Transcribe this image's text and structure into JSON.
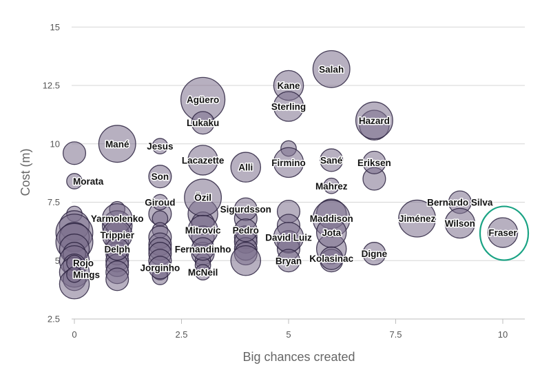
{
  "colors": {
    "bubble_fill": "#7b6f8d",
    "bubble_stroke": "#2c2240",
    "highlight": "#1aa384",
    "grid": "#d6d6d6"
  },
  "chart_data": {
    "type": "scatter",
    "xlabel": "Big chances created",
    "ylabel": "Cost (m)",
    "xlim": [
      0,
      10.5
    ],
    "ylim": [
      2.5,
      15.5
    ],
    "x_ticks": [
      0,
      2.5,
      5,
      7.5,
      10
    ],
    "x_tick_labels": [
      "0",
      "2.5",
      "5",
      "7.5",
      "10"
    ],
    "y_ticks": [
      2.5,
      5,
      7.5,
      10,
      12.5,
      15
    ],
    "y_tick_labels": [
      "2.5",
      "5",
      "7.5",
      "10",
      "12.5",
      "15"
    ],
    "grid": "horizontal",
    "highlighted": "Fraser",
    "labeled_points": [
      {
        "name": "Salah",
        "x": 6,
        "y": 13.2,
        "size": 4
      },
      {
        "name": "Kane",
        "x": 5,
        "y": 12.5,
        "size": 3
      },
      {
        "name": "Sterling",
        "x": 5,
        "y": 11.6,
        "size": 3
      },
      {
        "name": "Agüero",
        "x": 3,
        "y": 11.9,
        "size": 5
      },
      {
        "name": "Lukaku",
        "x": 3,
        "y": 10.9,
        "size": 2
      },
      {
        "name": "Hazard",
        "x": 7,
        "y": 11.0,
        "size": 4
      },
      {
        "name": "Mané",
        "x": 1,
        "y": 10.0,
        "size": 4
      },
      {
        "name": "Jesus",
        "x": 2,
        "y": 9.9,
        "size": 1
      },
      {
        "name": "Lacazette",
        "x": 3,
        "y": 9.3,
        "size": 3
      },
      {
        "name": "Alli",
        "x": 4,
        "y": 9.0,
        "size": 3
      },
      {
        "name": "Firmino",
        "x": 5,
        "y": 9.2,
        "size": 3
      },
      {
        "name": "Sané",
        "x": 6,
        "y": 9.3,
        "size": 2
      },
      {
        "name": "Eriksen",
        "x": 7,
        "y": 9.2,
        "size": 2
      },
      {
        "name": "Morata",
        "x": 0,
        "y": 8.4,
        "size": 1
      },
      {
        "name": "Son",
        "x": 2,
        "y": 8.6,
        "size": 2
      },
      {
        "name": "Mahrez",
        "x": 6,
        "y": 8.2,
        "size": 1
      },
      {
        "name": "Özil",
        "x": 3,
        "y": 7.7,
        "size": 4
      },
      {
        "name": "Giroud",
        "x": 2,
        "y": 7.5,
        "size": 1
      },
      {
        "name": "Sigurdsson",
        "x": 4,
        "y": 7.2,
        "size": 2
      },
      {
        "name": "Bernardo Silva",
        "x": 9,
        "y": 7.5,
        "size": 2
      },
      {
        "name": "Maddison",
        "x": 6,
        "y": 6.8,
        "size": 4
      },
      {
        "name": "Jiménez",
        "x": 8,
        "y": 6.8,
        "size": 4
      },
      {
        "name": "Wilson",
        "x": 9,
        "y": 6.6,
        "size": 3
      },
      {
        "name": "Fraser",
        "x": 10,
        "y": 6.2,
        "size": 3
      },
      {
        "name": "Yarmolenko",
        "x": 1,
        "y": 6.8,
        "size": 3
      },
      {
        "name": "Mitrovic",
        "x": 3,
        "y": 6.3,
        "size": 3
      },
      {
        "name": "Pedro",
        "x": 4,
        "y": 6.3,
        "size": 2
      },
      {
        "name": "Trippier",
        "x": 1,
        "y": 6.1,
        "size": 3
      },
      {
        "name": "David Luiz",
        "x": 5,
        "y": 6.0,
        "size": 3
      },
      {
        "name": "Jota",
        "x": 6,
        "y": 6.2,
        "size": 3
      },
      {
        "name": "Delph",
        "x": 1,
        "y": 5.5,
        "size": 2
      },
      {
        "name": "Fernandinho",
        "x": 3,
        "y": 5.5,
        "size": 2
      },
      {
        "name": "Digne",
        "x": 7,
        "y": 5.3,
        "size": 2
      },
      {
        "name": "Kolasinac",
        "x": 6,
        "y": 5.1,
        "size": 2
      },
      {
        "name": "Bryan",
        "x": 5,
        "y": 5.0,
        "size": 2
      },
      {
        "name": "Rojo",
        "x": 0,
        "y": 4.9,
        "size": 1
      },
      {
        "name": "Jorginho",
        "x": 2,
        "y": 4.7,
        "size": 2
      },
      {
        "name": "McNeil",
        "x": 3,
        "y": 4.5,
        "size": 1
      },
      {
        "name": "Mings",
        "x": 0,
        "y": 4.4,
        "size": 1
      }
    ],
    "unlabeled_points": [
      [
        0,
        9.6,
        2
      ],
      [
        0,
        7.0,
        1
      ],
      [
        0,
        6.5,
        3
      ],
      [
        0,
        6.2,
        4
      ],
      [
        0,
        6.0,
        3
      ],
      [
        0,
        5.8,
        4
      ],
      [
        0,
        5.5,
        3
      ],
      [
        0,
        5.3,
        2
      ],
      [
        0,
        5.0,
        3
      ],
      [
        0,
        4.8,
        2
      ],
      [
        0,
        4.5,
        3
      ],
      [
        0,
        4.2,
        2
      ],
      [
        0,
        4.0,
        3
      ],
      [
        1,
        7.2,
        1
      ],
      [
        1,
        6.5,
        3
      ],
      [
        1,
        6.2,
        2
      ],
      [
        1,
        5.8,
        2
      ],
      [
        1,
        5.3,
        2
      ],
      [
        1,
        5.0,
        2
      ],
      [
        1,
        4.8,
        2
      ],
      [
        1,
        4.5,
        2
      ],
      [
        1,
        4.2,
        2
      ],
      [
        2,
        7.0,
        2
      ],
      [
        2,
        6.8,
        1
      ],
      [
        2,
        6.3,
        1
      ],
      [
        2,
        6.0,
        2
      ],
      [
        2,
        5.7,
        2
      ],
      [
        2,
        5.5,
        2
      ],
      [
        2,
        5.3,
        2
      ],
      [
        2,
        5.0,
        2
      ],
      [
        2,
        4.5,
        1
      ],
      [
        2,
        4.3,
        1
      ],
      [
        3,
        7.0,
        3
      ],
      [
        3,
        6.6,
        2
      ],
      [
        3,
        6.0,
        2
      ],
      [
        3,
        5.3,
        2
      ],
      [
        3,
        5.0,
        1
      ],
      [
        3,
        4.8,
        1
      ],
      [
        4,
        6.8,
        2
      ],
      [
        4,
        6.0,
        2
      ],
      [
        4,
        5.8,
        2
      ],
      [
        4,
        5.5,
        2
      ],
      [
        4,
        5.3,
        2
      ],
      [
        4,
        5.0,
        3
      ],
      [
        5,
        9.8,
        1
      ],
      [
        5,
        7.1,
        2
      ],
      [
        5,
        6.5,
        2
      ],
      [
        5,
        5.8,
        2
      ],
      [
        5,
        5.5,
        2
      ],
      [
        6,
        7.0,
        3
      ],
      [
        6,
        5.5,
        3
      ],
      [
        6,
        5.0,
        2
      ],
      [
        7,
        10.8,
        3
      ],
      [
        7,
        8.5,
        2
      ]
    ]
  }
}
